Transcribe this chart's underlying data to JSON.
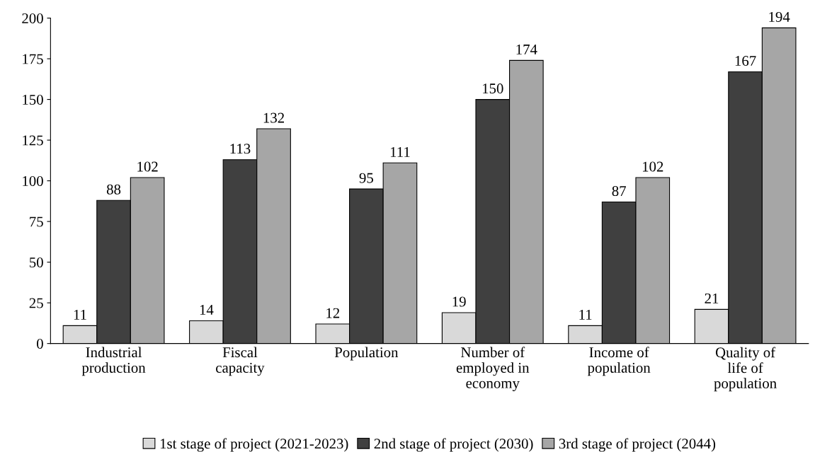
{
  "chart_data": {
    "type": "bar",
    "categories": [
      "Industrial\nproduction",
      "Fiscal\ncapacity",
      "Population",
      "Number of\nemployed in\neconomy",
      "Income of\npopulation",
      "Quality of\nlife of\npopulation"
    ],
    "series": [
      {
        "name": "1st stage of project (2021-2023)",
        "color": "#d9d9d9",
        "values": [
          11,
          14,
          12,
          19,
          11,
          21
        ]
      },
      {
        "name": "2nd stage of project (2030)",
        "color": "#404040",
        "values": [
          88,
          113,
          95,
          150,
          87,
          167
        ]
      },
      {
        "name": "3rd stage of project (2044)",
        "color": "#a6a6a6",
        "values": [
          102,
          132,
          111,
          174,
          102,
          194
        ]
      }
    ],
    "ylim": [
      0,
      200
    ],
    "yticks": [
      0,
      25,
      50,
      75,
      100,
      125,
      150,
      175,
      200
    ],
    "data_labels": true,
    "legend": "bottom",
    "grid": false
  }
}
